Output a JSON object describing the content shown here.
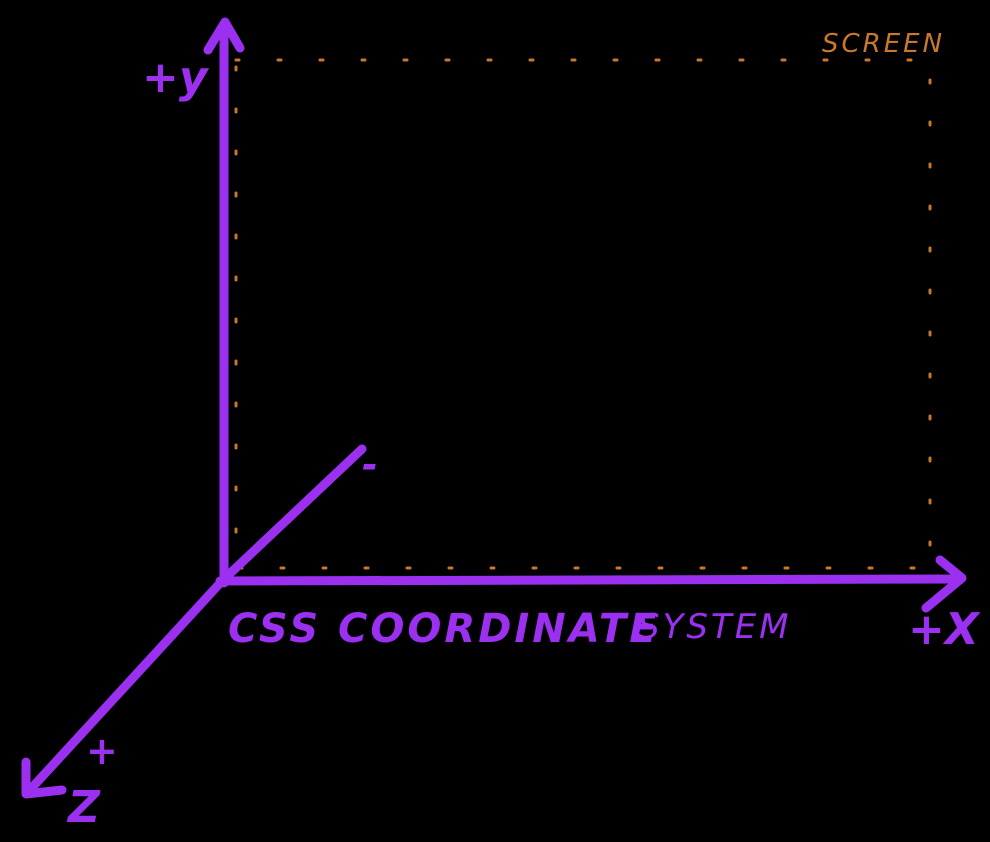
{
  "colors": {
    "background": "#000000",
    "axis": "#9b30f0",
    "screen": "#c8772c"
  },
  "screen": {
    "label": "SCREEN"
  },
  "axes": {
    "y_label": "+y",
    "x_label": "+X",
    "z_label": "Z",
    "z_plus": "+",
    "z_minus": "-"
  },
  "title": {
    "part1": "CSS COORDINATE",
    "part2": "SYSTEM"
  }
}
